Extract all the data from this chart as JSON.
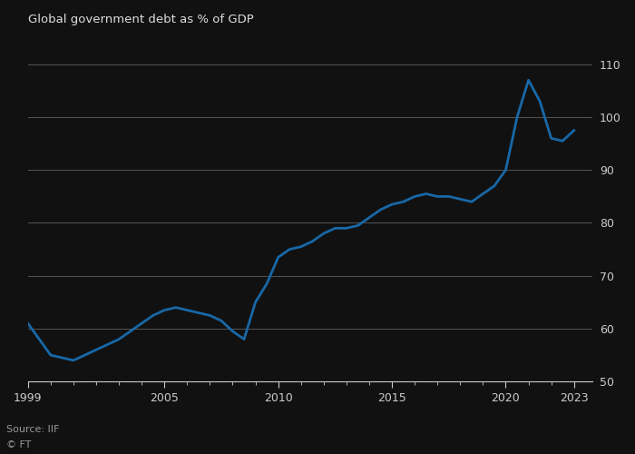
{
  "title": "Global government debt as % of GDP",
  "source": "Source: IIF",
  "copyright": "© FT",
  "bg_color": "#111111",
  "line_color": "#1868a7",
  "text_color": "#cccccc",
  "grid_color": "#555555",
  "title_color": "#dddddd",
  "source_color": "#999999",
  "ylim": [
    50,
    115
  ],
  "yticks": [
    50,
    60,
    70,
    80,
    90,
    100,
    110
  ],
  "xticks": [
    1999,
    2005,
    2010,
    2015,
    2020,
    2023
  ],
  "years": [
    1999.0,
    1999.5,
    2000.0,
    2000.5,
    2001.0,
    2001.5,
    2002.0,
    2002.5,
    2003.0,
    2003.5,
    2004.0,
    2004.5,
    2005.0,
    2005.5,
    2006.0,
    2006.5,
    2007.0,
    2007.5,
    2008.0,
    2008.5,
    2009.0,
    2009.5,
    2010.0,
    2010.5,
    2011.0,
    2011.5,
    2012.0,
    2012.5,
    2013.0,
    2013.5,
    2014.0,
    2014.5,
    2015.0,
    2015.5,
    2016.0,
    2016.5,
    2017.0,
    2017.5,
    2018.0,
    2018.5,
    2019.0,
    2019.5,
    2020.0,
    2020.5,
    2021.0,
    2021.5,
    2022.0,
    2022.5,
    2023.0
  ],
  "values": [
    61.0,
    58.0,
    55.0,
    54.5,
    54.0,
    55.0,
    56.0,
    57.0,
    58.0,
    59.5,
    61.0,
    62.5,
    63.5,
    64.0,
    63.5,
    63.0,
    62.5,
    61.5,
    59.5,
    58.0,
    65.0,
    68.5,
    73.5,
    75.0,
    75.5,
    76.5,
    78.0,
    79.0,
    79.0,
    79.5,
    81.0,
    82.5,
    83.5,
    84.0,
    85.0,
    85.5,
    85.0,
    85.0,
    84.5,
    84.0,
    85.5,
    87.0,
    90.0,
    100.0,
    107.0,
    103.0,
    96.0,
    95.5,
    97.5
  ]
}
